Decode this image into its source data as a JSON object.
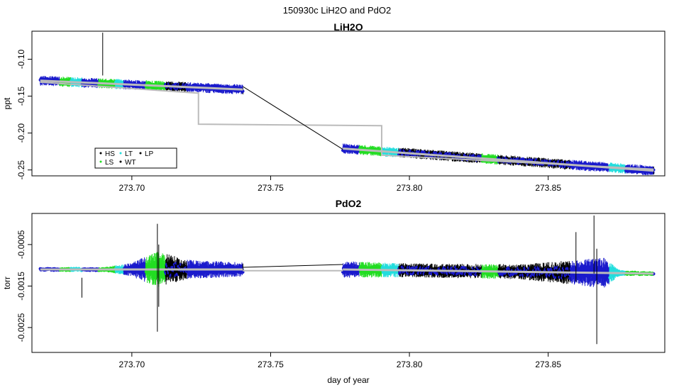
{
  "suptitle": "150930c   LiH2O and PdO2",
  "colors": {
    "HS": "#000000",
    "LS": "#22dd22",
    "LT": "#22dddd",
    "WT": "#000000",
    "LP": "#000000",
    "blue": "#1a1acc",
    "grey": "#bbbbbb",
    "black": "#000000"
  },
  "chart_data": [
    {
      "type": "scatter",
      "title": "LiH2O",
      "xlabel": "",
      "ylabel": "ppt",
      "xlim": [
        273.664,
        273.892
      ],
      "ylim": [
        -0.258,
        -0.062
      ],
      "xticks": [
        273.7,
        273.75,
        273.8,
        273.85
      ],
      "xtick_labels": [
        "273.70",
        "273.75",
        "273.80",
        "273.85"
      ],
      "yticks": [
        -0.1,
        -0.15,
        -0.2,
        -0.25
      ],
      "ytick_labels": [
        "-0.10",
        "-0.15",
        "-0.20",
        "-0.25"
      ],
      "legend": {
        "placement": "bottom-left",
        "entries": [
          {
            "label": "HS",
            "color": "#000000"
          },
          {
            "label": "LT",
            "color": "#22dddd"
          },
          {
            "label": "LP",
            "color": "#000000"
          },
          {
            "label": "LS",
            "color": "#22dd22"
          },
          {
            "label": "WT",
            "color": "#000000"
          }
        ]
      },
      "segments": [
        {
          "x": [
            273.667,
            273.74
          ],
          "y": [
            -0.129,
            -0.141
          ]
        },
        {
          "x": [
            273.776,
            273.888
          ],
          "y": [
            -0.221,
            -0.251
          ]
        }
      ],
      "spikes": [
        {
          "x": 273.6895,
          "y_top": -0.064,
          "y_bottom": -0.122
        }
      ],
      "black_line": {
        "x": [
          273.74,
          273.776
        ],
        "y": [
          -0.137,
          -0.222
        ]
      },
      "grey_line": {
        "x": [
          273.667,
          273.724,
          273.724,
          273.79,
          273.79,
          273.888
        ],
        "y": [
          -0.131,
          -0.146,
          -0.188,
          -0.19,
          -0.23,
          -0.249
        ]
      }
    },
    {
      "type": "scatter",
      "title": "PdO2",
      "xlabel": "day of year",
      "ylabel": "torr",
      "xlim": [
        273.664,
        273.892
      ],
      "ylim": [
        -0.0031,
        0.00025
      ],
      "xticks": [
        273.7,
        273.75,
        273.8,
        273.85
      ],
      "xtick_labels": [
        "273.70",
        "273.75",
        "273.80",
        "273.85"
      ],
      "yticks": [
        -0.0005,
        -0.0015,
        -0.0025
      ],
      "ytick_labels": [
        "-0.0005",
        "-0.0015",
        "-0.0025"
      ],
      "segments": [
        {
          "x": [
            273.667,
            273.74
          ],
          "y": [
            -0.0011,
            -0.0011
          ]
        },
        {
          "x": [
            273.776,
            273.888
          ],
          "y": [
            -0.0011,
            -0.0012
          ]
        }
      ],
      "spikes": [
        {
          "x": 273.682,
          "y_top": -0.0013,
          "y_bottom": -0.00178
        },
        {
          "x": 273.7092,
          "y_top": 0.0,
          "y_bottom": -0.0026
        },
        {
          "x": 273.7097,
          "y_top": -0.0005,
          "y_bottom": -0.002
        },
        {
          "x": 273.86,
          "y_top": -0.0002,
          "y_bottom": -0.0014
        },
        {
          "x": 273.8665,
          "y_top": 0.0002,
          "y_bottom": -0.0012
        },
        {
          "x": 273.8675,
          "y_top": -0.0006,
          "y_bottom": -0.0029
        }
      ],
      "black_line": {
        "x": [
          273.74,
          273.776
        ],
        "y": [
          -0.00105,
          -0.00098
        ]
      },
      "grey_line": {
        "x": [
          273.74,
          273.776
        ],
        "y": [
          -0.00113,
          -0.00113
        ]
      }
    }
  ]
}
